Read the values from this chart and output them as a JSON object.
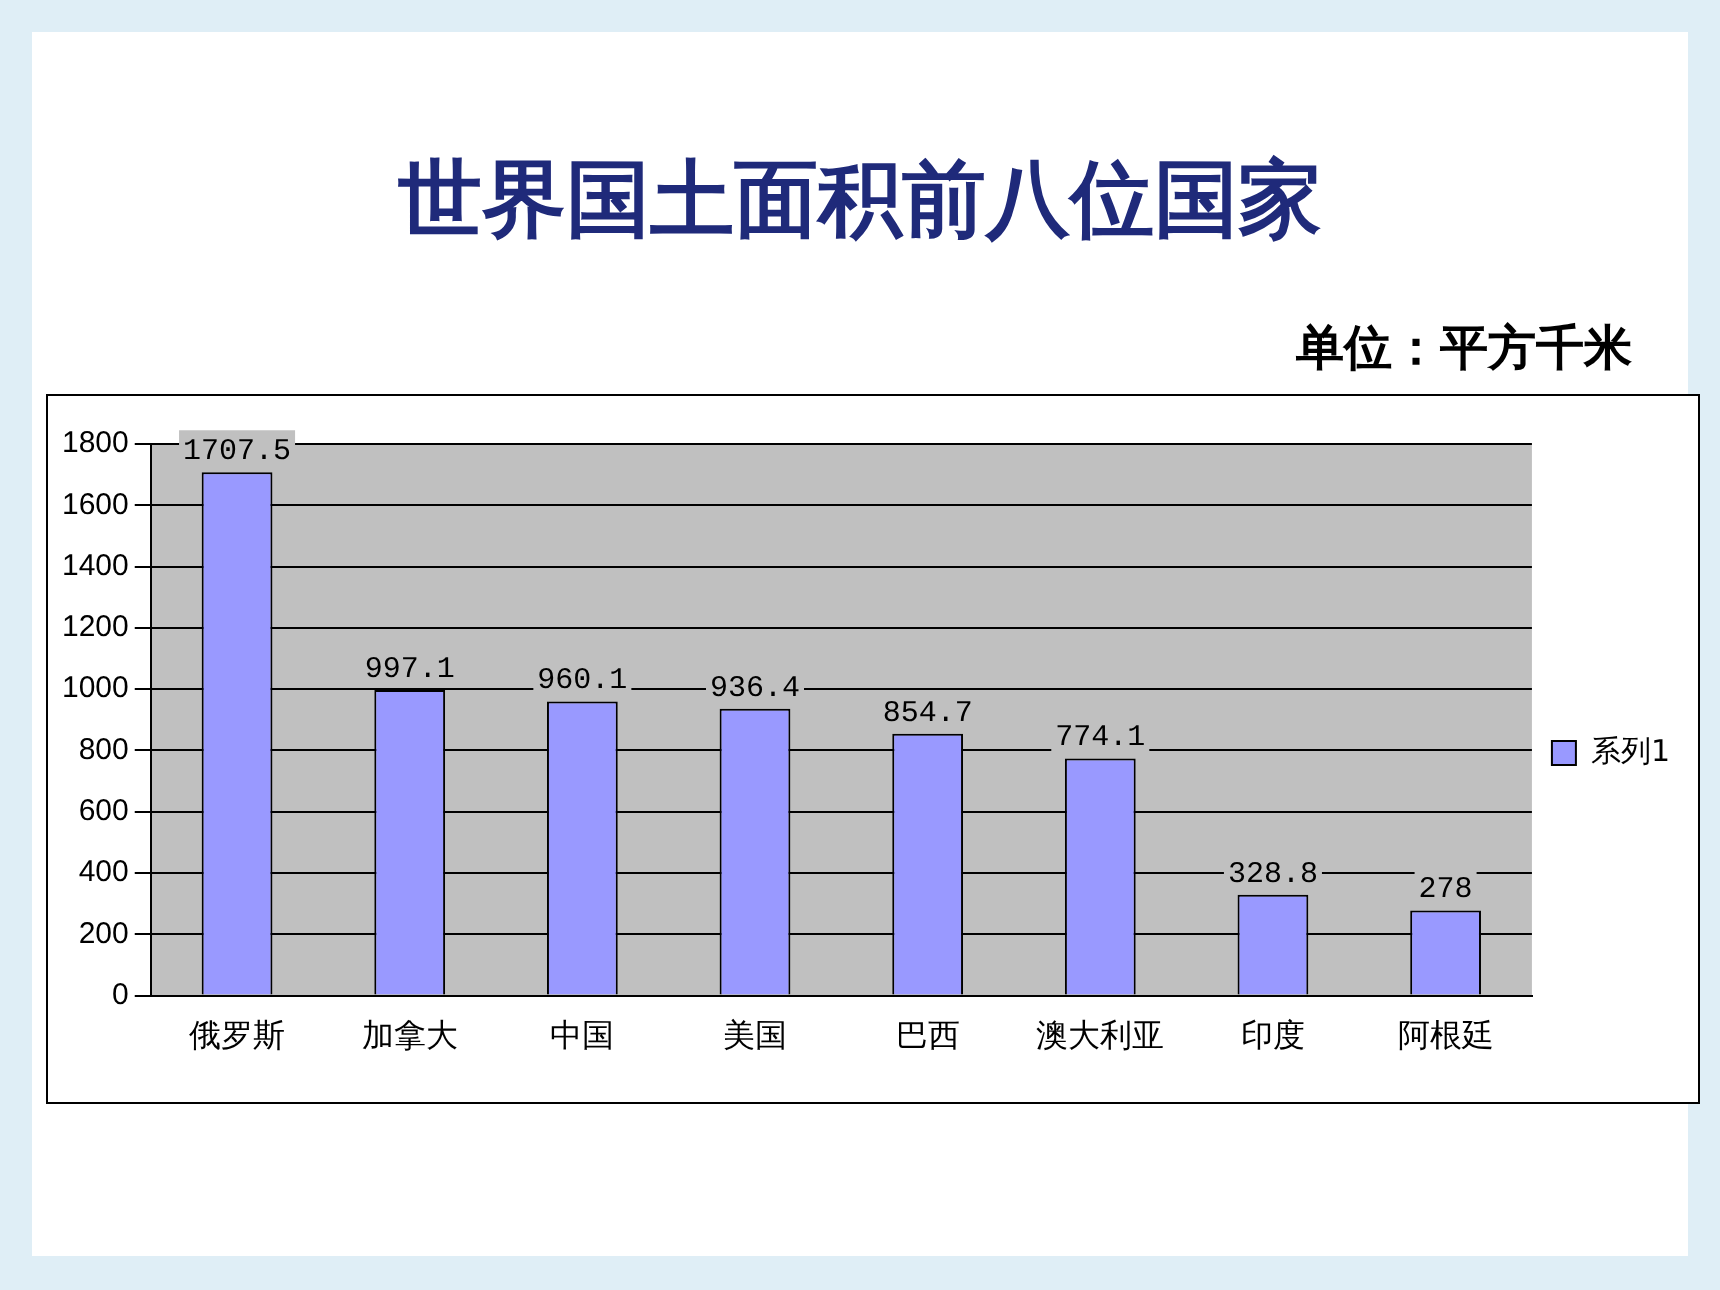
{
  "chart_data": {
    "type": "bar",
    "title": "世界国土面积前八位国家",
    "subtitle": "单位：平方千米",
    "categories": [
      "俄罗斯",
      "加拿大",
      "中国",
      "美国",
      "巴西",
      "澳大利亚",
      "印度",
      "阿根廷"
    ],
    "series": [
      {
        "name": "系列1",
        "color": "#9999ff",
        "values": [
          1707.5,
          997.1,
          960.1,
          936.4,
          854.7,
          774.1,
          328.8,
          278
        ]
      }
    ],
    "ylim": [
      0,
      1800
    ],
    "yticks": [
      0,
      200,
      400,
      600,
      800,
      1000,
      1200,
      1400,
      1600,
      1800
    ],
    "grid": "y",
    "legend": "right",
    "data_labels": true
  }
}
